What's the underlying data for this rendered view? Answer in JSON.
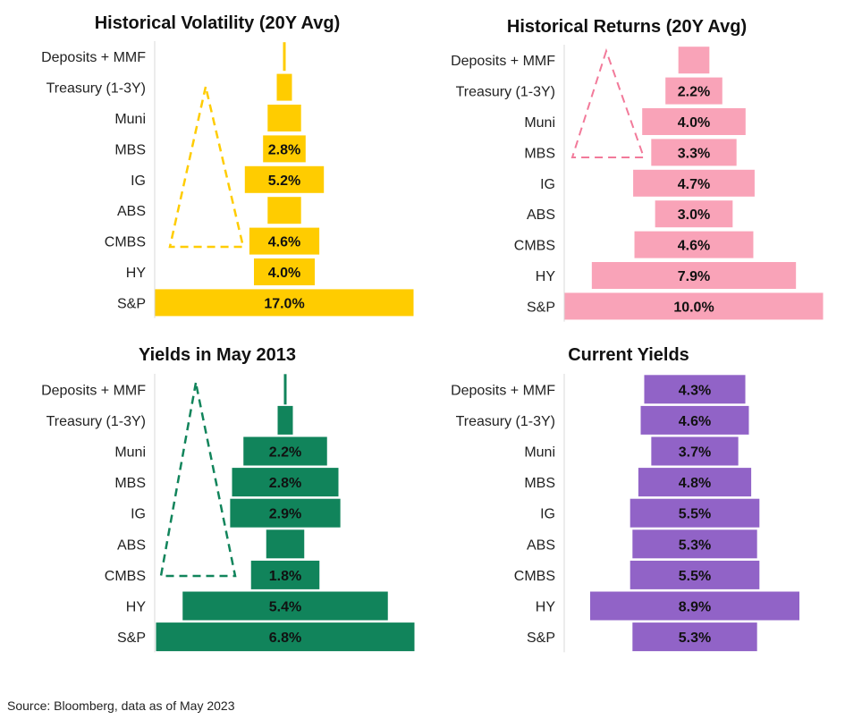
{
  "source_note": "Source: Bloomberg, data as of May 2023",
  "chart_data": [
    {
      "type": "bar",
      "title": "Historical Volatility (20Y Avg)",
      "color": "#FFCC00",
      "categories": [
        "Deposits + MMF",
        "Treasury (1-3Y)",
        "Muni",
        "MBS",
        "IG",
        "ABS",
        "CMBS",
        "HY",
        "S&P"
      ],
      "values": [
        0.1,
        1.0,
        2.2,
        2.8,
        5.2,
        2.2,
        4.6,
        4.0,
        17.0
      ],
      "labels": [
        "",
        "",
        "",
        "2.8%",
        "5.2%",
        "",
        "4.6%",
        "4.0%",
        "17.0%"
      ]
    },
    {
      "type": "bar",
      "title": "Historical Returns (20Y Avg)",
      "color": "#F9A3B8",
      "categories": [
        "Deposits + MMF",
        "Treasury (1-3Y)",
        "Muni",
        "MBS",
        "IG",
        "ABS",
        "CMBS",
        "HY",
        "S&P"
      ],
      "values": [
        1.2,
        2.2,
        4.0,
        3.3,
        4.7,
        3.0,
        4.6,
        7.9,
        10.0
      ],
      "labels": [
        "",
        "2.2%",
        "4.0%",
        "3.3%",
        "4.7%",
        "3.0%",
        "4.6%",
        "7.9%",
        "10.0%"
      ]
    },
    {
      "type": "bar",
      "title": "Yields in May 2013",
      "color": "#11845B",
      "categories": [
        "Deposits + MMF",
        "Treasury (1-3Y)",
        "Muni",
        "MBS",
        "IG",
        "ABS",
        "CMBS",
        "HY",
        "S&P"
      ],
      "values": [
        0.1,
        0.4,
        2.2,
        2.8,
        2.9,
        1.0,
        1.8,
        5.4,
        6.8
      ],
      "labels": [
        "",
        "",
        "2.2%",
        "2.8%",
        "2.9%",
        "",
        "1.8%",
        "5.4%",
        "6.8%"
      ]
    },
    {
      "type": "bar",
      "title": "Current Yields",
      "color": "#9163C7",
      "categories": [
        "Deposits + MMF",
        "Treasury (1-3Y)",
        "Muni",
        "MBS",
        "IG",
        "ABS",
        "CMBS",
        "HY",
        "S&P"
      ],
      "values": [
        4.3,
        4.6,
        3.7,
        4.8,
        5.5,
        5.3,
        5.5,
        8.9,
        5.3
      ],
      "labels": [
        "4.3%",
        "4.6%",
        "3.7%",
        "4.8%",
        "5.5%",
        "5.3%",
        "5.5%",
        "8.9%",
        "5.3%"
      ]
    }
  ]
}
